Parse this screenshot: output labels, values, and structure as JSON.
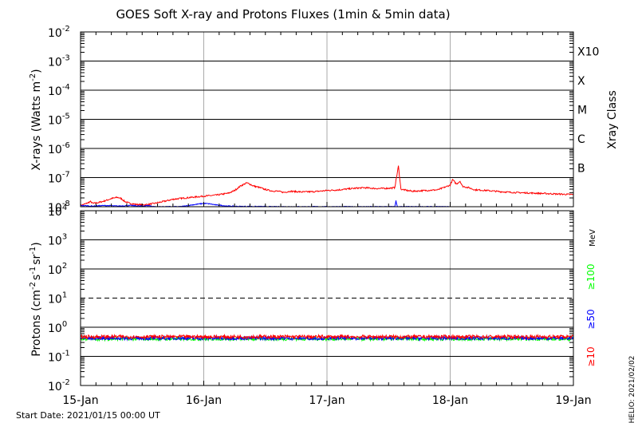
{
  "title": "GOES Soft X-ray and Protons Fluxes   (1min & 5min data)",
  "start_date": "Start Date: 2021/01/15 00:00 UT",
  "helio": "HELIO: 2021/02/02",
  "chart_data": [
    {
      "type": "line",
      "panel": "xray",
      "ylabel": "X-rays (Watts m^-2)",
      "ylabel_parts": [
        "X-rays (Watts m",
        "-2",
        ")"
      ],
      "yscale": "log",
      "ylim": [
        1e-08,
        0.01
      ],
      "ytick_exponents": [
        "-2",
        "-3",
        "-4",
        "-5",
        "-6",
        "-7",
        "-8"
      ],
      "y2label": "Xray Class",
      "class_labels": [
        {
          "label": "X10",
          "value": 0.001
        },
        {
          "label": "X",
          "value": 0.0001
        },
        {
          "label": "M",
          "value": 1e-05
        },
        {
          "label": "C",
          "value": 1e-06
        },
        {
          "label": "B",
          "value": 1e-07
        }
      ],
      "xlim": [
        "2021-01-15",
        "2021-01-19"
      ],
      "series": [
        {
          "color": "#ff0000",
          "x_days": [
            0,
            0.05,
            0.08,
            0.1,
            0.15,
            0.2,
            0.25,
            0.3,
            0.33,
            0.36,
            0.4,
            0.45,
            0.5,
            0.55,
            0.6,
            0.7,
            0.75,
            0.8,
            0.9,
            1.0,
            1.1,
            1.2,
            1.25,
            1.3,
            1.35,
            1.38,
            1.4,
            1.45,
            1.5,
            1.55,
            1.6,
            1.65,
            1.7,
            1.8,
            1.9,
            2.0,
            2.1,
            2.2,
            2.3,
            2.4,
            2.5,
            2.55,
            2.58,
            2.6,
            2.65,
            2.7,
            2.8,
            2.9,
            3.0,
            3.02,
            3.05,
            3.08,
            3.1,
            3.15,
            3.2,
            3.3,
            3.4,
            3.5,
            3.6,
            3.7,
            3.8,
            3.9,
            4.0
          ],
          "y": [
            1.1e-08,
            1.3e-08,
            1.5e-08,
            1.3e-08,
            1.4e-08,
            1.6e-08,
            1.9e-08,
            2.1e-08,
            1.9e-08,
            1.5e-08,
            1.3e-08,
            1.2e-08,
            1.15e-08,
            1.2e-08,
            1.3e-08,
            1.6e-08,
            1.8e-08,
            1.9e-08,
            2.1e-08,
            2.3e-08,
            2.5e-08,
            2.9e-08,
            3.6e-08,
            5.2e-08,
            6.6e-08,
            5.8e-08,
            5.2e-08,
            4.6e-08,
            3.9e-08,
            3.5e-08,
            3.4e-08,
            3.1e-08,
            3.4e-08,
            3.2e-08,
            3.3e-08,
            3.6e-08,
            3.8e-08,
            4.2e-08,
            4.5e-08,
            4.2e-08,
            4.3e-08,
            4.5e-08,
            2.5e-07,
            4e-08,
            3.6e-08,
            3.4e-08,
            3.6e-08,
            3.8e-08,
            5.5e-08,
            8.5e-08,
            6e-08,
            7.5e-08,
            5e-08,
            4.5e-08,
            3.8e-08,
            3.6e-08,
            3.3e-08,
            3.1e-08,
            3e-08,
            2.9e-08,
            2.8e-08,
            2.7e-08,
            2.6e-08
          ]
        },
        {
          "color": "#0000ff",
          "x_days": [
            0,
            0.1,
            0.2,
            0.3,
            0.4,
            0.5,
            0.55,
            0.6,
            0.8,
            0.85,
            0.9,
            1.0,
            1.05,
            1.1,
            1.2,
            1.3,
            1.4,
            1.5,
            1.55,
            2.0,
            2.5,
            2.55,
            2.56,
            2.57,
            2.6,
            3.0
          ],
          "y": [
            1.1e-08,
            1.05e-08,
            1.1e-08,
            1.05e-08,
            1.1e-08,
            1.05e-08,
            1.1e-08,
            1e-08,
            1e-08,
            1.05e-08,
            1.15e-08,
            1.3e-08,
            1.25e-08,
            1.15e-08,
            1.05e-08,
            1.02e-08,
            1.02e-08,
            1.01e-08,
            1e-08,
            1e-08,
            1e-08,
            1e-08,
            1.6e-08,
            1e-08,
            1e-08,
            1e-08
          ]
        }
      ]
    },
    {
      "type": "line",
      "panel": "protons",
      "ylabel": "Protons (cm^-2 s^-1 sr^-1)",
      "ylabel_parts": [
        "Protons (cm",
        "-2",
        "s",
        "-1",
        "sr",
        "-1",
        ")"
      ],
      "yscale": "log",
      "ylim": [
        0.01,
        10000
      ],
      "ytick_exponents": [
        "4",
        "3",
        "2",
        "1",
        "0",
        "-1",
        "-2"
      ],
      "threshold": 10,
      "units_label": "MeV",
      "xlim": [
        "2021-01-15",
        "2021-01-19"
      ],
      "series": [
        {
          "name": "≥10",
          "color": "#ff0000",
          "level": 0.47
        },
        {
          "name": "≥50",
          "color": "#0000ff",
          "level": 0.42
        },
        {
          "name": "≥100",
          "color": "#00ff00",
          "level": 0.4
        }
      ]
    }
  ],
  "xticks": [
    "15-Jan",
    "16-Jan",
    "17-Jan",
    "18-Jan",
    "19-Jan"
  ]
}
